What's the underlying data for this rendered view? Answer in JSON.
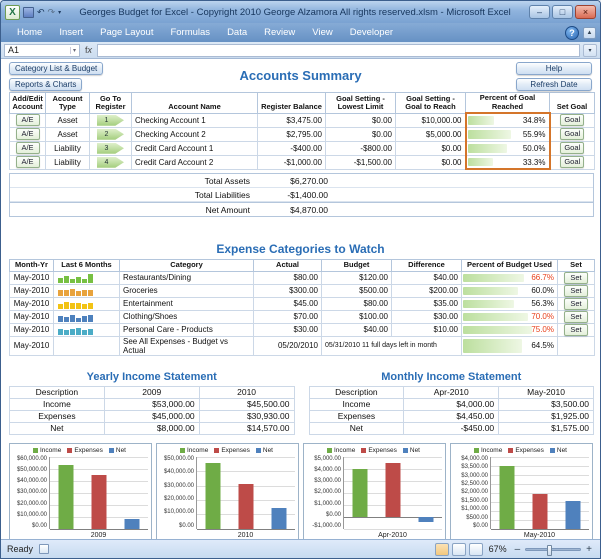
{
  "window": {
    "title": "Georges Budget for Excel - Copyright 2010  George Alzamora  All rights reserved.xlsm - Microsoft Excel",
    "status_ready": "Ready",
    "zoom_level": "67%"
  },
  "colors": {
    "accent_blue": "#2A6DB5",
    "alert_red": "#E8401C",
    "data_bar_green": "#BCDF9E",
    "highlight_border_orange": "#D4752A",
    "income_green": "#6FAC46",
    "expenses_red": "#BE4B48",
    "net_blue": "#4F81BD"
  },
  "ribbon": {
    "tabs": [
      "Home",
      "Insert",
      "Page Layout",
      "Formulas",
      "Data",
      "Review",
      "View",
      "Developer"
    ]
  },
  "formula_bar": {
    "name_box": "A1"
  },
  "nav": {
    "category_list_budget": "Category List & Budget",
    "reports_charts": "Reports & Charts",
    "help": "Help",
    "refresh_date": "Refresh Date"
  },
  "accounts": {
    "title": "Accounts Summary",
    "headers": [
      "Add/Edit Account",
      "Account Type",
      "Go To Register",
      "Account Name",
      "Register Balance",
      "Goal Setting - Lowest Limit",
      "Goal Setting - Goal to Reach",
      "Percent of Goal Reached",
      "Set Goal"
    ],
    "rows": [
      {
        "add_edit": "A/E",
        "type": "Asset",
        "register": "1",
        "name": "Checking Account 1",
        "balance": "$3,475.00",
        "lowest": "$0.00",
        "goal": "$10,000.00",
        "percent": "34.8%",
        "percent_value": 34.8,
        "set_label": "Goal"
      },
      {
        "add_edit": "A/E",
        "type": "Asset",
        "register": "2",
        "name": "Checking Account 2",
        "balance": "$2,795.00",
        "lowest": "$0.00",
        "goal": "$5,000.00",
        "percent": "55.9%",
        "percent_value": 55.9,
        "set_label": "Goal"
      },
      {
        "add_edit": "A/E",
        "type": "Liability",
        "register": "3",
        "name": "Credit Card Account 1",
        "balance": "-$400.00",
        "lowest": "-$800.00",
        "goal": "$0.00",
        "percent": "50.0%",
        "percent_value": 50.0,
        "set_label": "Goal"
      },
      {
        "add_edit": "A/E",
        "type": "Liability",
        "register": "4",
        "name": "Credit Card Account 2",
        "balance": "-$1,000.00",
        "lowest": "-$1,500.00",
        "goal": "$0.00",
        "percent": "33.3%",
        "percent_value": 33.3,
        "set_label": "Goal"
      }
    ],
    "totals": [
      {
        "label": "Total Assets",
        "value": "$6,270.00"
      },
      {
        "label": "Total Liabilities",
        "value": "-$1,400.00"
      },
      {
        "label": "Net Amount",
        "value": "$4,870.00"
      }
    ]
  },
  "expenses": {
    "title": "Expense Categories to Watch",
    "headers": [
      "Month-Yr",
      "Last 6 Months",
      "Category",
      "Actual",
      "Budget",
      "Difference",
      "Percent of Budget Used",
      "Set"
    ],
    "rows": [
      {
        "month": "May-2010",
        "category": "Restaurants/Dining",
        "actual": "$80.00",
        "budget": "$120.00",
        "difference": "$40.00",
        "percent": "66.7%",
        "percent_value": 66.7,
        "alert": true,
        "spark_color": "#77C043",
        "spark": [
          45,
          70,
          40,
          60,
          35,
          85
        ],
        "set_label": "Set"
      },
      {
        "month": "May-2010",
        "category": "Groceries",
        "actual": "$300.00",
        "budget": "$500.00",
        "difference": "$200.00",
        "percent": "60.0%",
        "percent_value": 60.0,
        "alert": false,
        "spark_color": "#E8A33D",
        "spark": [
          60,
          55,
          65,
          50,
          60,
          55
        ],
        "set_label": "Set"
      },
      {
        "month": "May-2010",
        "category": "Entertainment",
        "actual": "$45.00",
        "budget": "$80.00",
        "difference": "$35.00",
        "percent": "56.3%",
        "percent_value": 56.3,
        "alert": false,
        "spark_color": "#F2C314",
        "spark": [
          50,
          65,
          55,
          60,
          45,
          55
        ],
        "set_label": "Set"
      },
      {
        "month": "May-2010",
        "category": "Clothing/Shoes",
        "actual": "$70.00",
        "budget": "$100.00",
        "difference": "$30.00",
        "percent": "70.0%",
        "percent_value": 70.0,
        "alert": true,
        "spark_color": "#4E81BD",
        "spark": [
          55,
          45,
          65,
          40,
          60,
          70
        ],
        "set_label": "Set"
      },
      {
        "month": "May-2010",
        "category": "Personal Care - Products",
        "actual": "$30.00",
        "budget": "$40.00",
        "difference": "$10.00",
        "percent": "75.0%",
        "percent_value": 75.0,
        "alert": true,
        "spark_color": "#4BACC6",
        "spark": [
          60,
          50,
          55,
          65,
          45,
          60
        ],
        "set_label": "Set"
      }
    ],
    "summary": {
      "month": "May-2010",
      "category": "See All Expenses - Budget vs Actual",
      "actual": "05/20/2010",
      "note": "05/31/2010 11 full days left in month",
      "percent": "64.5%",
      "percent_value": 64.5
    }
  },
  "income": {
    "yearly": {
      "title": "Yearly Income Statement",
      "headers": [
        "Description",
        "2009",
        "2010"
      ],
      "rows": [
        {
          "label": "Income",
          "v1": "$53,000.00",
          "v2": "$45,500.00"
        },
        {
          "label": "Expenses",
          "v1": "$45,000.00",
          "v2": "$30,930.00"
        },
        {
          "label": "Net",
          "v1": "$8,000.00",
          "v2": "$14,570.00"
        }
      ]
    },
    "monthly": {
      "title": "Monthly Income Statement",
      "headers": [
        "Description",
        "Apr-2010",
        "May-2010"
      ],
      "rows": [
        {
          "label": "Income",
          "v1": "$4,000.00",
          "v2": "$3,500.00"
        },
        {
          "label": "Expenses",
          "v1": "$4,450.00",
          "v2": "$1,925.00"
        },
        {
          "label": "Net",
          "v1": "-$450.00",
          "v2": "$1,575.00"
        }
      ]
    }
  },
  "chart_data": {
    "type": "bar",
    "legend": [
      {
        "name": "Income",
        "color": "#6FAC46"
      },
      {
        "name": "Expenses",
        "color": "#BE4B48"
      },
      {
        "name": "Net",
        "color": "#4F81BD"
      }
    ],
    "charts": [
      {
        "category": "2009",
        "values": [
          53000,
          45000,
          8000
        ],
        "ylim": [
          0,
          60000
        ],
        "ytick_labels": [
          "$60,000.00",
          "$50,000.00",
          "$40,000.00",
          "$30,000.00",
          "$20,000.00",
          "$10,000.00",
          "$0.00"
        ]
      },
      {
        "category": "2010",
        "values": [
          45500,
          30930,
          14570
        ],
        "ylim": [
          0,
          50000
        ],
        "ytick_labels": [
          "$50,000.00",
          "$40,000.00",
          "$30,000.00",
          "$20,000.00",
          "$10,000.00",
          "$0.00"
        ]
      },
      {
        "category": "Apr-2010",
        "values": [
          4000,
          4450,
          -450
        ],
        "ylim": [
          -1000,
          5000
        ],
        "ytick_labels": [
          "$5,000.00",
          "$4,000.00",
          "$3,000.00",
          "$2,000.00",
          "$1,000.00",
          "$0.00",
          "-$1,000.00"
        ]
      },
      {
        "category": "May-2010",
        "values": [
          3500,
          1925,
          1575
        ],
        "ylim": [
          0,
          4000
        ],
        "ytick_labels": [
          "$4,000.00",
          "$3,500.00",
          "$3,000.00",
          "$2,500.00",
          "$2,000.00",
          "$1,500.00",
          "$1,000.00",
          "$500.00",
          "$0.00"
        ]
      }
    ]
  }
}
